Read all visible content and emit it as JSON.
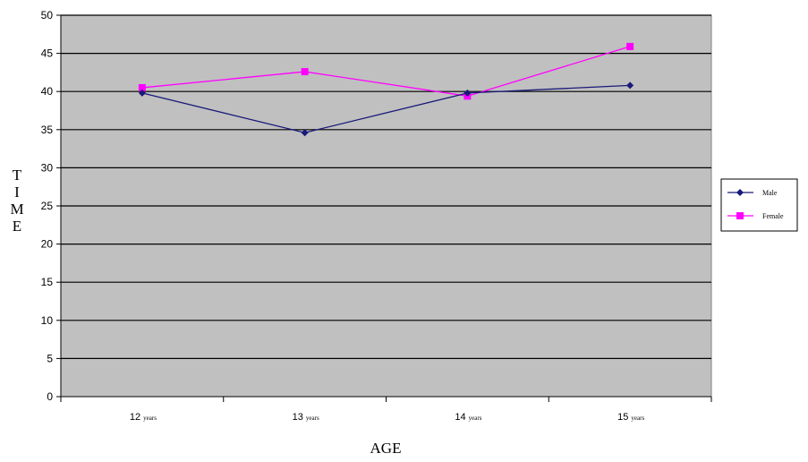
{
  "chart_data": {
    "type": "line",
    "title": "",
    "xlabel": "AGE",
    "ylabel": "TIME",
    "ylabel_letters": [
      "T",
      "I",
      "M",
      "E"
    ],
    "categories": [
      {
        "num": "12",
        "unit": "years"
      },
      {
        "num": "13",
        "unit": "years"
      },
      {
        "num": "14",
        "unit": "years"
      },
      {
        "num": "15",
        "unit": "years"
      }
    ],
    "ylim": [
      0,
      50
    ],
    "yticks": [
      0,
      5,
      10,
      15,
      20,
      25,
      30,
      35,
      40,
      45,
      50
    ],
    "grid": true,
    "legend_position": "right",
    "plot_background": "#c0c0c0",
    "series": [
      {
        "name": "Male",
        "values": [
          39.8,
          34.6,
          39.8,
          40.8
        ],
        "color": "#1a1a7a",
        "marker": "diamond"
      },
      {
        "name": "Female",
        "values": [
          40.5,
          42.6,
          39.4,
          45.9
        ],
        "color": "#ff00ff",
        "marker": "square"
      }
    ]
  }
}
